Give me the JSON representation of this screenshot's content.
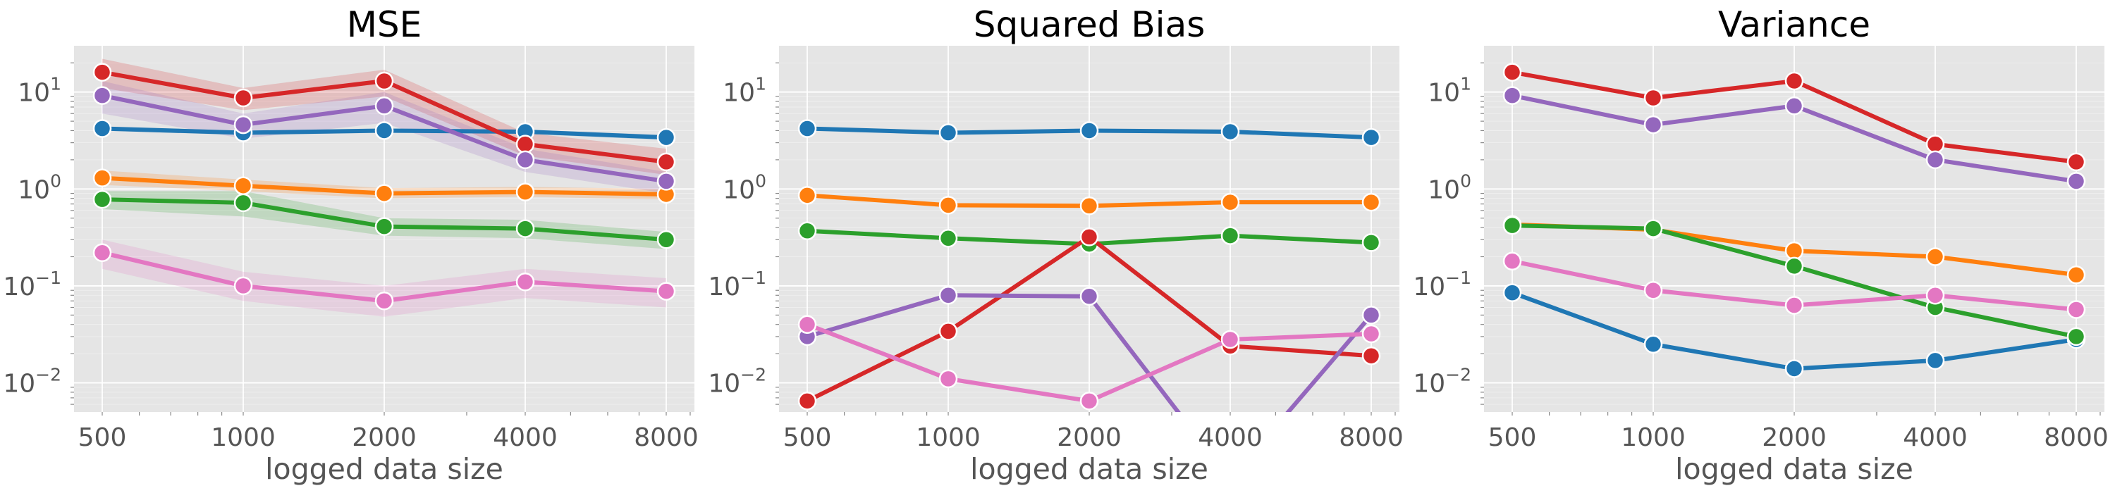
{
  "colors": {
    "tab_blue": "#1f77b4",
    "tab_orange": "#ff7f0e",
    "tab_green": "#2ca02c",
    "tab_red": "#d62728",
    "tab_purple": "#9467bd",
    "tab_pink": "#e377c2",
    "panel_bg": "#e5e5e5",
    "grid": "#ffffff",
    "tick_text": "#555555"
  },
  "chart_data": [
    {
      "type": "line",
      "title": "MSE",
      "xlabel": "logged data size",
      "ylabel": "",
      "x": [
        500,
        1000,
        2000,
        4000,
        8000
      ],
      "x_tick_labels": [
        "500",
        "1000",
        "2000",
        "4000",
        "8000"
      ],
      "xscale": "log",
      "yscale": "log",
      "ylim": [
        0.005,
        30
      ],
      "y_ticks": [
        0.01,
        0.1,
        1,
        10
      ],
      "y_tick_labels": [
        {
          "base": "10",
          "exp": "−2"
        },
        {
          "base": "10",
          "exp": "−1"
        },
        {
          "base": "10",
          "exp": "0"
        },
        {
          "base": "10",
          "exp": "1"
        }
      ],
      "grid": true,
      "series": [
        {
          "color": "#1f77b4",
          "values": [
            4.2,
            3.8,
            4.0,
            3.9,
            3.4
          ],
          "band_low": [
            4.0,
            3.6,
            3.8,
            3.7,
            3.2
          ],
          "band_high": [
            4.4,
            4.0,
            4.2,
            4.1,
            3.6
          ]
        },
        {
          "color": "#ff7f0e",
          "values": [
            1.3,
            1.08,
            0.9,
            0.93,
            0.88
          ],
          "band_low": [
            1.1,
            0.95,
            0.8,
            0.83,
            0.78
          ],
          "band_high": [
            1.55,
            1.25,
            1.02,
            1.05,
            1.0
          ]
        },
        {
          "color": "#2ca02c",
          "values": [
            0.78,
            0.72,
            0.41,
            0.39,
            0.3
          ],
          "band_low": [
            0.62,
            0.52,
            0.33,
            0.31,
            0.24
          ],
          "band_high": [
            0.95,
            0.95,
            0.5,
            0.48,
            0.36
          ]
        },
        {
          "color": "#d62728",
          "values": [
            16,
            8.7,
            13,
            2.9,
            1.9
          ],
          "band_low": [
            11,
            6.5,
            9,
            2.2,
            1.4
          ],
          "band_high": [
            22,
            11,
            17,
            3.8,
            2.6
          ]
        },
        {
          "color": "#9467bd",
          "values": [
            9.2,
            4.6,
            7.2,
            2.0,
            1.2
          ],
          "band_low": [
            6.0,
            3.3,
            4.8,
            1.5,
            0.9
          ],
          "band_high": [
            13,
            6.0,
            10,
            2.6,
            1.5
          ]
        },
        {
          "color": "#e377c2",
          "values": [
            0.22,
            0.1,
            0.07,
            0.11,
            0.088
          ],
          "band_low": [
            0.15,
            0.07,
            0.048,
            0.075,
            0.06
          ],
          "band_high": [
            0.3,
            0.14,
            0.1,
            0.15,
            0.12
          ]
        }
      ]
    },
    {
      "type": "line",
      "title": "Squared Bias",
      "xlabel": "logged data size",
      "ylabel": "",
      "x": [
        500,
        1000,
        2000,
        4000,
        8000
      ],
      "x_tick_labels": [
        "500",
        "1000",
        "2000",
        "4000",
        "8000"
      ],
      "xscale": "log",
      "yscale": "log",
      "ylim": [
        0.005,
        30
      ],
      "y_ticks": [
        0.01,
        0.1,
        1,
        10
      ],
      "y_tick_labels": [
        {
          "base": "10",
          "exp": "−2"
        },
        {
          "base": "10",
          "exp": "−1"
        },
        {
          "base": "10",
          "exp": "0"
        },
        {
          "base": "10",
          "exp": "1"
        }
      ],
      "grid": true,
      "series": [
        {
          "color": "#1f77b4",
          "values": [
            4.2,
            3.8,
            4.0,
            3.9,
            3.4
          ]
        },
        {
          "color": "#ff7f0e",
          "values": [
            0.86,
            0.68,
            0.67,
            0.73,
            0.73
          ]
        },
        {
          "color": "#2ca02c",
          "values": [
            0.37,
            0.31,
            0.27,
            0.33,
            0.28
          ]
        },
        {
          "color": "#d62728",
          "values": [
            0.0065,
            0.034,
            0.32,
            0.024,
            0.019
          ]
        },
        {
          "color": "#9467bd",
          "values": [
            0.03,
            0.08,
            0.078,
            0.001,
            0.05
          ]
        },
        {
          "color": "#e377c2",
          "values": [
            0.04,
            0.011,
            0.0065,
            0.028,
            0.032
          ]
        }
      ]
    },
    {
      "type": "line",
      "title": "Variance",
      "xlabel": "logged data size",
      "ylabel": "",
      "x": [
        500,
        1000,
        2000,
        4000,
        8000
      ],
      "x_tick_labels": [
        "500",
        "1000",
        "2000",
        "4000",
        "8000"
      ],
      "xscale": "log",
      "yscale": "log",
      "ylim": [
        0.005,
        30
      ],
      "y_ticks": [
        0.01,
        0.1,
        1,
        10
      ],
      "y_tick_labels": [
        {
          "base": "10",
          "exp": "−2"
        },
        {
          "base": "10",
          "exp": "−1"
        },
        {
          "base": "10",
          "exp": "0"
        },
        {
          "base": "10",
          "exp": "1"
        }
      ],
      "grid": true,
      "series": [
        {
          "color": "#1f77b4",
          "values": [
            0.085,
            0.025,
            0.014,
            0.017,
            0.028
          ]
        },
        {
          "color": "#ff7f0e",
          "values": [
            0.43,
            0.38,
            0.23,
            0.2,
            0.13
          ]
        },
        {
          "color": "#2ca02c",
          "values": [
            0.42,
            0.39,
            0.16,
            0.06,
            0.03
          ]
        },
        {
          "color": "#d62728",
          "values": [
            16,
            8.7,
            13,
            2.9,
            1.9
          ]
        },
        {
          "color": "#9467bd",
          "values": [
            9.2,
            4.6,
            7.2,
            2.0,
            1.2
          ]
        },
        {
          "color": "#e377c2",
          "values": [
            0.18,
            0.09,
            0.063,
            0.08,
            0.057
          ]
        }
      ]
    }
  ]
}
